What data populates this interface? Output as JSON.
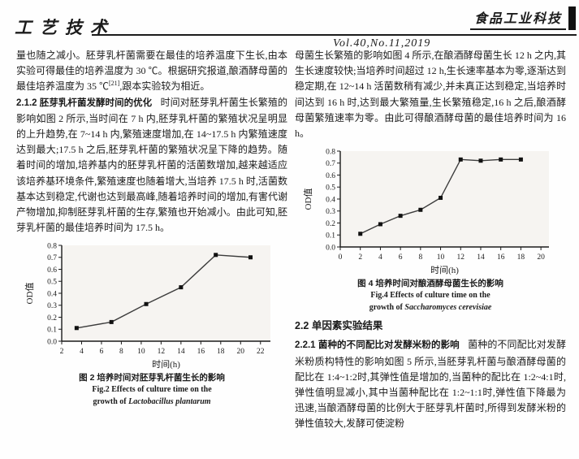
{
  "header": {
    "section_label": "工艺技术",
    "journal_name": "食品工业科技",
    "volume_info": "Vol.40,No.11,2019"
  },
  "left_column": {
    "p1a": "量也随之减小。胚芽乳杆菌需要在最佳的培养温度下生长,由本实验可得最佳的培养温度为 30 ℃。根据研究报道,酿酒酵母菌的最佳培养温度为 35 ℃",
    "p1_sup": "[21]",
    "p1b": ",跟本实验较为相近。",
    "s212_heading": "2.1.2 胚芽乳杆菌发酵时间的优化",
    "s212_text": "时间对胚芽乳杆菌生长繁殖的影响如图 2 所示,当时间在 7 h 内,胚芽乳杆菌的繁殖状况呈明显的上升趋势,在 7~14 h 内,繁殖速度增加,在 14~17.5 h 内繁殖速度达到最大;17.5 h 之后,胚芽乳杆菌的繁殖状况呈下降的趋势。随着时间的增加,培养基内的胚芽乳杆菌的活菌数增加,越来越适应该培养基环境条件,繁殖速度也随着增大,当培养 17.5 h 时,活菌数基本达到稳定,代谢也达到最高峰,随着培养时间的增加,有害代谢产物增加,抑制胚芽乳杆菌的生存,繁殖也开始减小。由此可知,胚芽乳杆菌的最佳培养时间为 17.5 h。"
  },
  "right_column": {
    "p1": "母菌生长繁殖的影响如图 4 所示,在酿酒酵母菌生长 12 h 之内,其生长速度较快;当培养时间超过 12 h,生长速率基本为零,逐渐达到稳定期,在 12~14 h 活菌数稍有减少,并未真正达到稳定,当培养时间达到 16 h 时,达到最大繁殖量,生长繁殖稳定,16 h 之后,酿酒酵母菌繁殖速率为零。由此可得酿酒酵母菌的最佳培养时间为 16 h。",
    "s22_heading": "2.2 单因素实验结果",
    "s221_heading": "2.2.1 菌种的不同配比对发酵米粉的影响",
    "s221_text": "菌种的不同配比对发酵米粉质构特性的影响如图 5 所示,当胚芽乳杆菌与酿酒酵母菌的配比在 1:4~1:2时,其弹性值是增加的,当菌种的配比在 1:2~4:1时,弹性值明显减小,其中当菌种配比在 1:2~1:1时,弹性值下降最为迅速,当酿酒酵母菌的比例大于胚芽乳杆菌时,所得到发酵米粉的弹性值较大,发酵可使淀粉"
  },
  "figures": {
    "fig2": {
      "caption_zh": "图 2  培养时间对胚芽乳杆菌生长的影响",
      "caption_en1": "Fig.2  Effects of culture time on the",
      "caption_en2_prefix": "growth of ",
      "caption_en2_species": "Lactobacillus plantarum"
    },
    "fig4": {
      "caption_zh": "图 4  培养时间对酿酒酵母菌生长的影响",
      "caption_en1": "Fig.4  Effects of culture time on the",
      "caption_en2_prefix": "growth of ",
      "caption_en2_species": "Saccharomyces cerevisiae"
    }
  },
  "chart_data": [
    {
      "id": "fig2",
      "type": "line",
      "x": [
        3.5,
        7,
        10.5,
        14,
        17.5,
        21
      ],
      "y": [
        0.11,
        0.16,
        0.31,
        0.45,
        0.72,
        0.7
      ],
      "xlabel": "时间(h)",
      "ylabel": "OD值",
      "xlim": [
        2,
        23
      ],
      "ylim": [
        0,
        0.8
      ],
      "xticks": [
        2,
        4,
        6,
        8,
        10,
        12,
        14,
        16,
        18,
        20,
        22
      ],
      "yticks": [
        0.0,
        0.1,
        0.2,
        0.3,
        0.4,
        0.5,
        0.6,
        0.7,
        0.8
      ],
      "marker": "square",
      "line_color": "#3c3c3c",
      "marker_color": "#111111",
      "plot_bg": "#f6f4f1",
      "grid": false,
      "legend": null
    },
    {
      "id": "fig4",
      "type": "line",
      "x": [
        2,
        4,
        6,
        8,
        10,
        12,
        14,
        16,
        18
      ],
      "y": [
        0.11,
        0.19,
        0.26,
        0.31,
        0.41,
        0.73,
        0.72,
        0.73,
        0.73
      ],
      "xlabel": "时间(h)",
      "ylabel": "OD值",
      "xlim": [
        0,
        20.8
      ],
      "ylim": [
        0,
        0.8
      ],
      "xticks": [
        0,
        2,
        4,
        6,
        8,
        10,
        12,
        14,
        16,
        18,
        20
      ],
      "yticks": [
        0.0,
        0.1,
        0.2,
        0.3,
        0.4,
        0.5,
        0.6,
        0.7,
        0.8
      ],
      "marker": "square",
      "line_color": "#3c3c3c",
      "marker_color": "#111111",
      "plot_bg": "#f6f4f1",
      "grid": false,
      "legend": null
    }
  ]
}
